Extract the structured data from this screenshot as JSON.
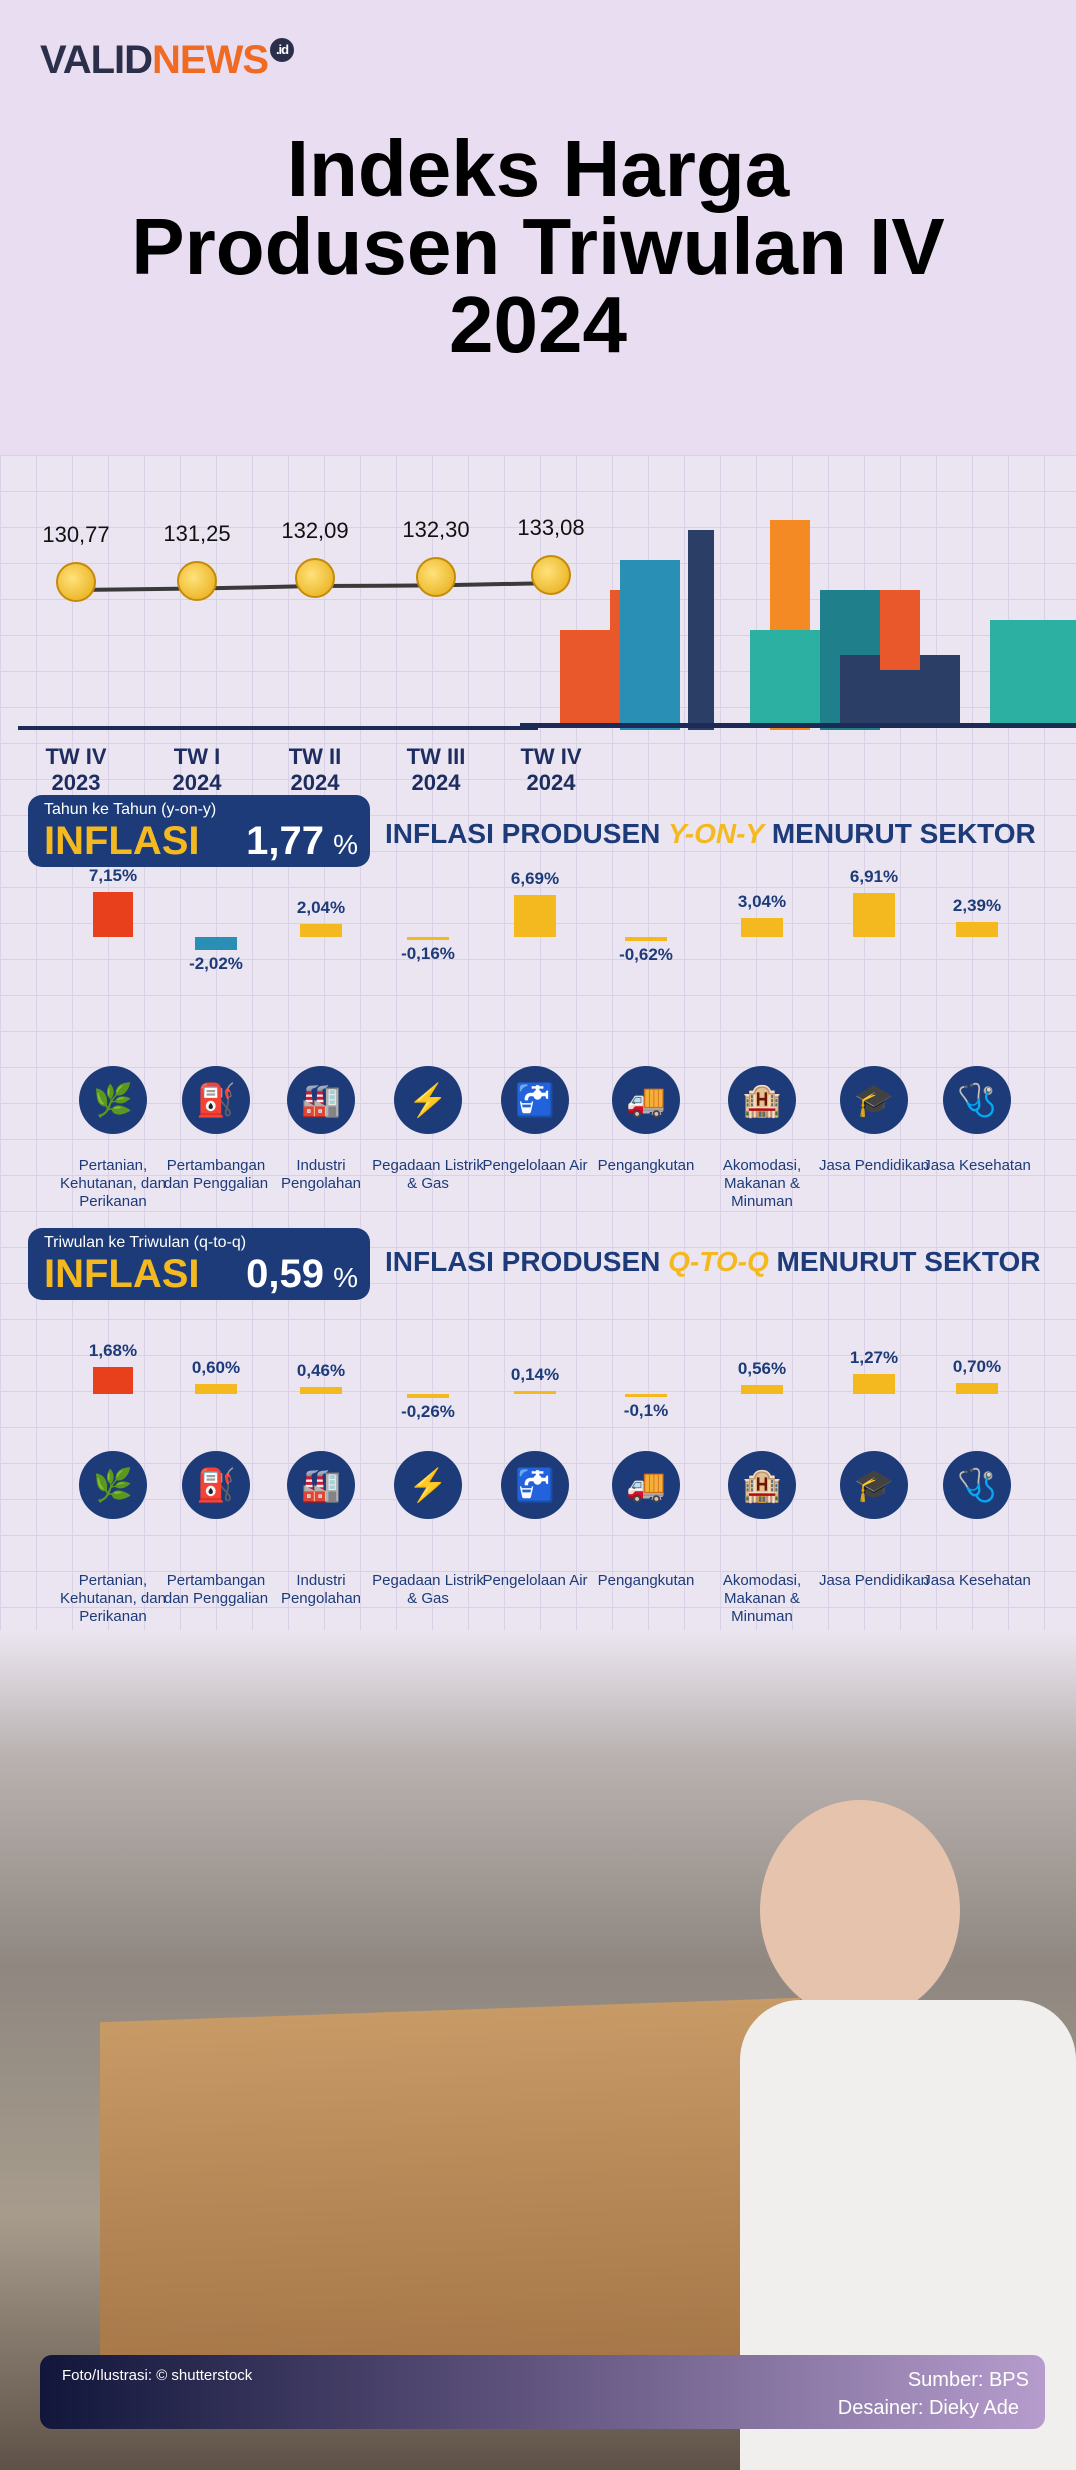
{
  "brand": {
    "name_a": "VALID",
    "name_b": "NEWS",
    "suffix": ".id"
  },
  "title": [
    "Indeks Harga",
    "Produsen Triwulan IV",
    "2024"
  ],
  "timeline": {
    "periods": [
      {
        "q": "TW IV",
        "y": "2023",
        "v": "130,77"
      },
      {
        "q": "TW I",
        "y": "2024",
        "v": "131,25"
      },
      {
        "q": "TW II",
        "y": "2024",
        "v": "132,09"
      },
      {
        "q": "TW III",
        "y": "2024",
        "v": "132,30"
      },
      {
        "q": "TW IV",
        "y": "2024",
        "v": "133,08"
      }
    ]
  },
  "yoy": {
    "sub": "Tahun ke Tahun (y-on-y)",
    "label": "INFLASI",
    "value": "1,77",
    "pct": "%",
    "head_a": "INFLASI PRODUSEN ",
    "head_b": "Y-ON-Y",
    "head_c": " MENURUT SEKTOR"
  },
  "qtq": {
    "sub": "Triwulan ke Triwulan (q-to-q)",
    "label": "INFLASI",
    "value": "0,59",
    "pct": "%",
    "head_a": "INFLASI PRODUSEN ",
    "head_b": "Q-TO-Q",
    "head_c": " MENURUT SEKTOR"
  },
  "sectors": [
    {
      "name": "Pertanian, Kehutanan, dan Perikanan",
      "icon": "🌿"
    },
    {
      "name": "Pertambangan dan Penggalian",
      "icon": "⛽"
    },
    {
      "name": "Industri Pengolahan",
      "icon": "🏭"
    },
    {
      "name": "Pegadaan Listrik & Gas",
      "icon": "⚡"
    },
    {
      "name": "Pengelolaan Air",
      "icon": "🚰"
    },
    {
      "name": "Pengangkutan",
      "icon": "🚚"
    },
    {
      "name": "Akomodasi, Makanan & Minuman",
      "icon": "🏨"
    },
    {
      "name": "Jasa Pendidikan",
      "icon": "🎓"
    },
    {
      "name": "Jasa Kesehatan",
      "icon": "🩺"
    }
  ],
  "chart_data": [
    {
      "type": "line",
      "title": "Indeks Harga Produsen",
      "categories": [
        "TW IV 2023",
        "TW I 2024",
        "TW II 2024",
        "TW III 2024",
        "TW IV 2024"
      ],
      "values": [
        130.77,
        131.25,
        132.09,
        132.3,
        133.08
      ]
    },
    {
      "type": "bar",
      "title": "Inflasi Produsen Y-on-Y Menurut Sektor",
      "values": [
        7.15,
        -2.02,
        2.04,
        -0.16,
        6.69,
        -0.62,
        3.04,
        6.91,
        2.39
      ],
      "labels": [
        "7,15%",
        "-2,02%",
        "2,04%",
        "-0,16%",
        "6,69%",
        "-0,62%",
        "3,04%",
        "6,91%",
        "2,39%"
      ]
    },
    {
      "type": "bar",
      "title": "Inflasi Produsen Q-to-Q Menurut Sektor",
      "values": [
        1.68,
        0.6,
        0.46,
        -0.26,
        0.14,
        -0.1,
        0.56,
        1.27,
        0.7
      ],
      "labels": [
        "1,68%",
        "0,60%",
        "0,46%",
        "-0,26%",
        "0,14%",
        "-0,1%",
        "0,56%",
        "1,27%",
        "0,70%"
      ]
    }
  ],
  "colors": {
    "navy": "#1c3b78",
    "yellow": "#f5b920",
    "neg": "#2a8fb5",
    "first": "#e8401c"
  },
  "footer": {
    "photo": "Foto/Ilustrasi: © shutterstock",
    "source": "Sumber: BPS",
    "designer": "Desainer: Dieky Ade"
  }
}
